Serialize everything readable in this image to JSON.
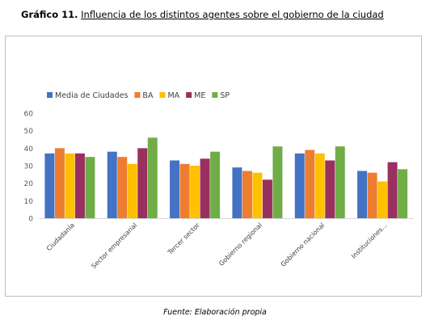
{
  "header": {
    "title_lead": "Gráfico 11.",
    "title_rest": "Influencia de los distintos agentes sobre el gobierno de la ciudad"
  },
  "footer": {
    "source": "Fuente: Elaboración propia"
  },
  "chart_data": {
    "type": "bar",
    "categories": [
      "Ciudadanía",
      "Sector empresarial",
      "Tercer sector",
      "Gobierno regional",
      "Gobierno nacional",
      "Instituciones..."
    ],
    "series": [
      {
        "name": "Media de Ciudades",
        "color": "#4472C4",
        "values": [
          37,
          38,
          33,
          29,
          37,
          27
        ]
      },
      {
        "name": "BA",
        "color": "#ED7D31",
        "values": [
          40,
          35,
          31,
          27,
          39,
          26
        ]
      },
      {
        "name": "MA",
        "color": "#FFC000",
        "values": [
          37,
          31,
          30,
          26,
          37,
          21
        ]
      },
      {
        "name": "ME",
        "color": "#99305F",
        "values": [
          37,
          40,
          34,
          22,
          33,
          32
        ]
      },
      {
        "name": "SP",
        "color": "#70AD47",
        "values": [
          35,
          46,
          38,
          41,
          41,
          28
        ]
      }
    ],
    "ylim": [
      0,
      60
    ],
    "yticks": [
      0,
      10,
      20,
      30,
      40,
      50,
      60
    ],
    "grid": false,
    "legend": "top-left"
  }
}
